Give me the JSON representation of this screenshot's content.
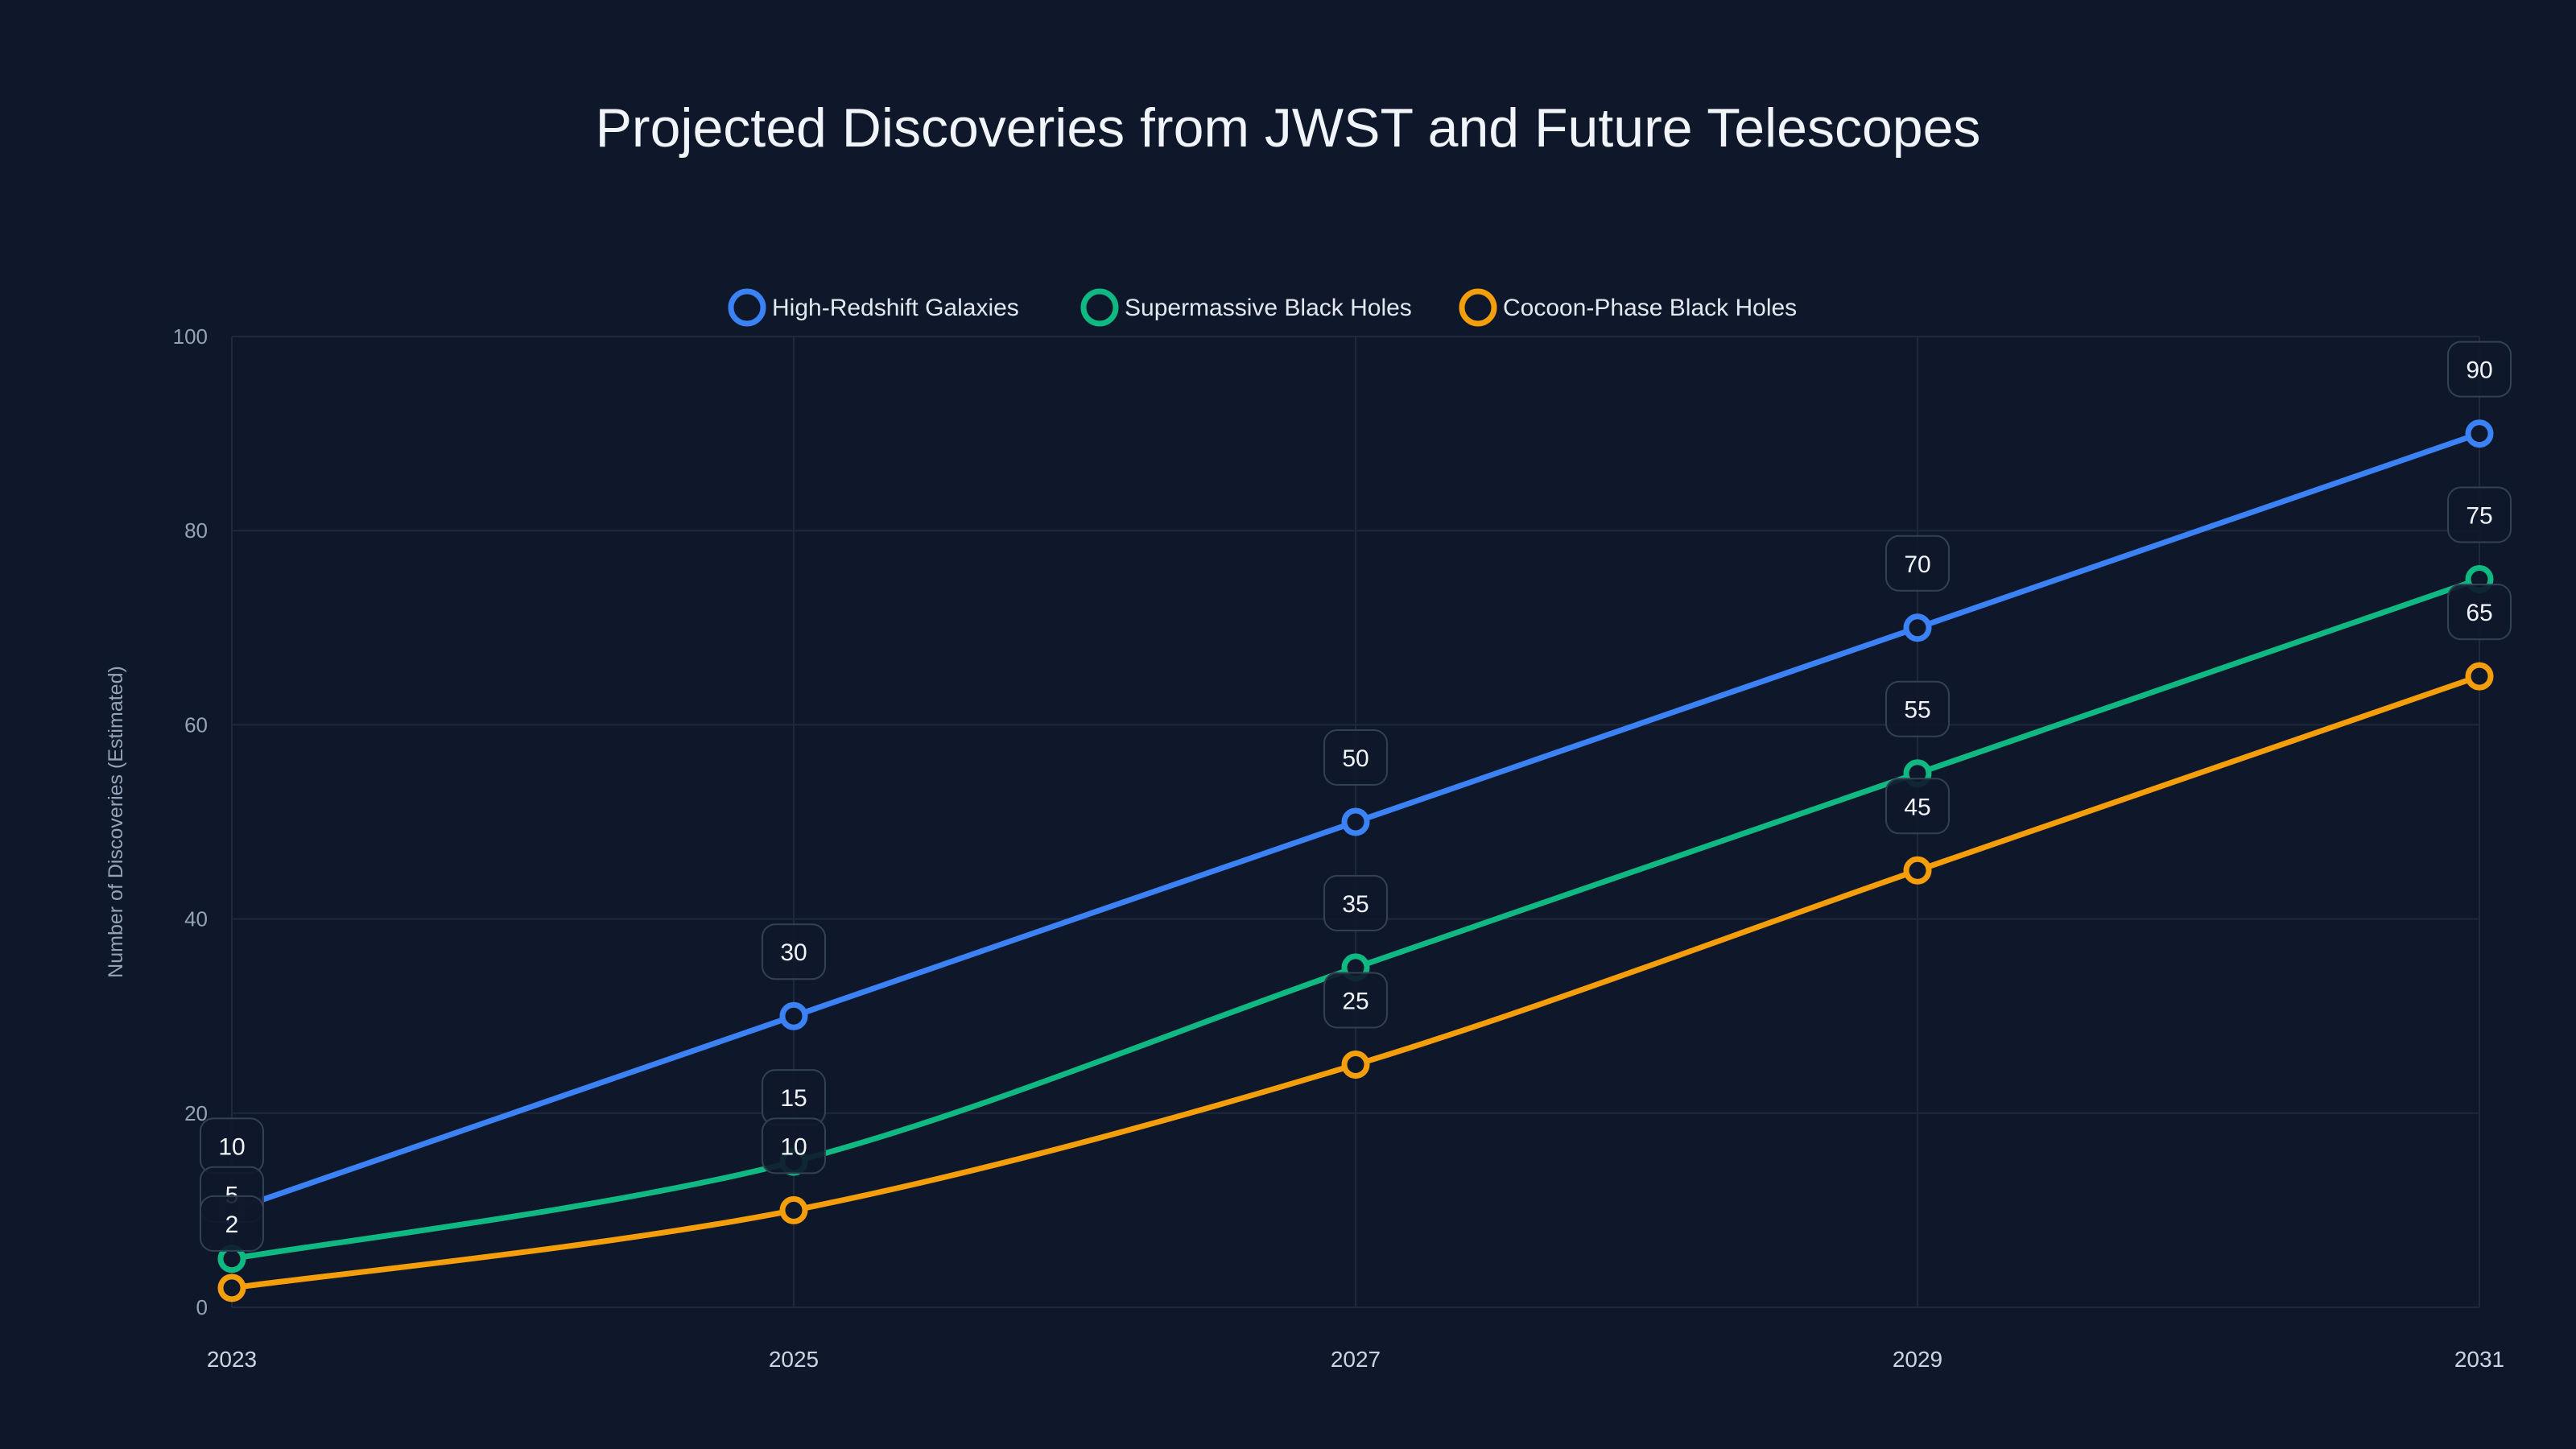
{
  "chart_data": {
    "type": "line",
    "title": "Projected Discoveries from JWST and Future Telescopes",
    "xlabel": "",
    "ylabel": "Number of Discoveries (Estimated)",
    "x": [
      "2023",
      "2025",
      "2027",
      "2029",
      "2031"
    ],
    "ylim": [
      0,
      100
    ],
    "yticks": [
      "0",
      "20",
      "40",
      "60",
      "80",
      "100"
    ],
    "grid": true,
    "legend_position": "top-center",
    "series": [
      {
        "name": "High-Redshift Galaxies",
        "color": "#3b82f6",
        "values": [
          10,
          30,
          50,
          70,
          90
        ]
      },
      {
        "name": "Supermassive Black Holes",
        "color": "#10b981",
        "values": [
          5,
          15,
          35,
          55,
          75
        ]
      },
      {
        "name": "Cocoon-Phase Black Holes",
        "color": "#f59e0b",
        "values": [
          2,
          10,
          25,
          45,
          65
        ]
      }
    ]
  }
}
